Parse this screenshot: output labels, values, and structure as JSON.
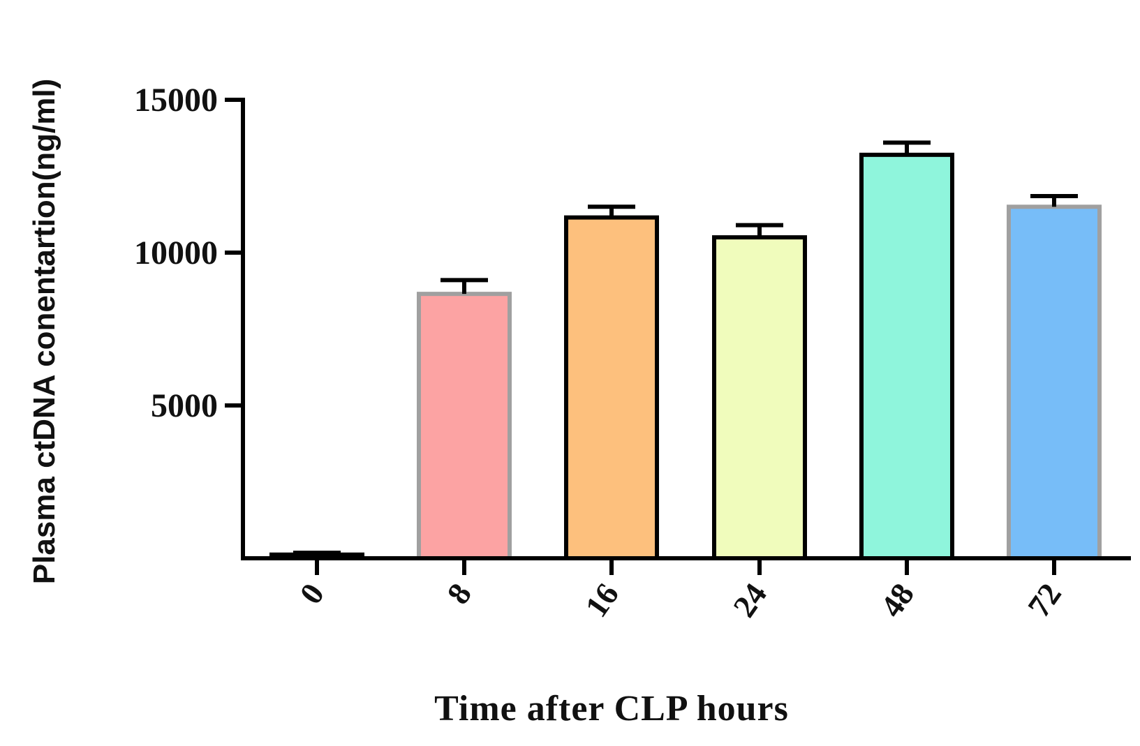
{
  "chart_data": {
    "type": "bar",
    "categories": [
      "0",
      "8",
      "16",
      "24",
      "48",
      "72"
    ],
    "values": [
      120,
      8650,
      11150,
      10500,
      13200,
      11500
    ],
    "error_upper": [
      60,
      450,
      350,
      400,
      400,
      350
    ],
    "fill_colors": [
      "#111111",
      "#fca3a3",
      "#fdc07d",
      "#f0fcbc",
      "#8ff5dc",
      "#77bdf8"
    ],
    "edge_colors": [
      "#000000",
      "#a0a0a0",
      "#000000",
      "#000000",
      "#000000",
      "#a0a0a0"
    ],
    "ylim": [
      0,
      15000
    ],
    "yticks": [
      "5000",
      "10000",
      "15000"
    ],
    "xlabel": "Time after CLP hours",
    "ylabel": "Plasma ctDNA conentartion(ng/ml)",
    "grid": false,
    "legend": "none"
  }
}
